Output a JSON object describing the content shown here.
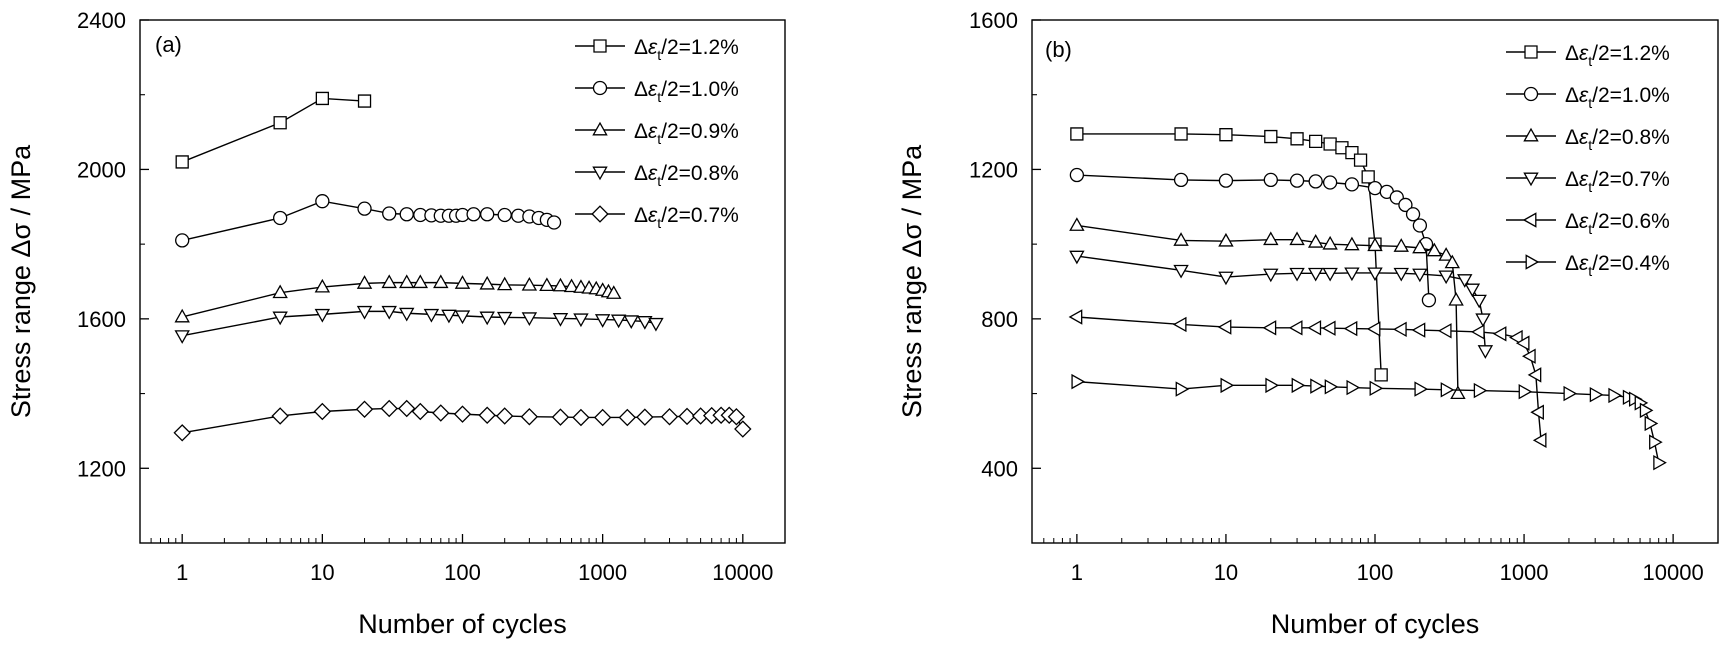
{
  "chart_data": [
    {
      "panel": "(a)",
      "type": "line",
      "xlabel": "Number of cycles",
      "ylabel": "Stress range Δσ / MPa",
      "xscale": "log",
      "xlim": [
        0.5,
        20000
      ],
      "ylim": [
        1000,
        2400
      ],
      "xticks": [
        1,
        10,
        100,
        1000,
        10000
      ],
      "xtick_labels": [
        "1",
        "10",
        "100",
        "1000",
        "10000"
      ],
      "yticks": [
        1200,
        1600,
        2000,
        2400
      ],
      "ytick_labels": [
        "1200",
        "1600",
        "2000",
        "2400"
      ],
      "legend_position": "top-right",
      "series": [
        {
          "name": "Δεt/2=1.2%",
          "marker": "square",
          "x": [
            1,
            5,
            10,
            20
          ],
          "y": [
            2020,
            2125,
            2190,
            2183
          ]
        },
        {
          "name": "Δεt/2=1.0%",
          "marker": "circle",
          "x": [
            1,
            5,
            10,
            20,
            30,
            40,
            50,
            60,
            70,
            80,
            90,
            100,
            120,
            150,
            200,
            250,
            300,
            350,
            400,
            450
          ],
          "y": [
            1810,
            1870,
            1915,
            1895,
            1882,
            1880,
            1878,
            1877,
            1876,
            1876,
            1876,
            1878,
            1880,
            1880,
            1878,
            1876,
            1874,
            1870,
            1865,
            1858
          ]
        },
        {
          "name": "Δεt/2=0.9%",
          "marker": "triangle-up",
          "x": [
            1,
            5,
            10,
            20,
            30,
            40,
            50,
            70,
            100,
            150,
            200,
            300,
            400,
            500,
            600,
            700,
            800,
            900,
            1000,
            1100,
            1200
          ],
          "y": [
            1605,
            1670,
            1685,
            1695,
            1697,
            1697,
            1697,
            1697,
            1695,
            1693,
            1691,
            1690,
            1689,
            1688,
            1686,
            1684,
            1682,
            1680,
            1676,
            1672,
            1668
          ]
        },
        {
          "name": "Δεt/2=0.8%",
          "marker": "triangle-down",
          "x": [
            1,
            5,
            10,
            20,
            30,
            40,
            60,
            80,
            100,
            150,
            200,
            300,
            500,
            700,
            1000,
            1300,
            1600,
            2000,
            2400
          ],
          "y": [
            1555,
            1605,
            1612,
            1620,
            1620,
            1615,
            1612,
            1610,
            1608,
            1605,
            1604,
            1603,
            1601,
            1600,
            1598,
            1597,
            1595,
            1593,
            1588
          ]
        },
        {
          "name": "Δεt/2=0.7%",
          "marker": "diamond",
          "x": [
            1,
            5,
            10,
            20,
            30,
            40,
            50,
            70,
            100,
            150,
            200,
            300,
            500,
            700,
            1000,
            1500,
            2000,
            3000,
            4000,
            5000,
            6000,
            7000,
            8000,
            9000,
            10000
          ],
          "y": [
            1295,
            1340,
            1352,
            1358,
            1360,
            1360,
            1352,
            1348,
            1345,
            1342,
            1340,
            1338,
            1337,
            1336,
            1336,
            1336,
            1337,
            1338,
            1339,
            1340,
            1341,
            1342,
            1342,
            1338,
            1305
          ]
        }
      ]
    },
    {
      "panel": "(b)",
      "type": "line",
      "xlabel": "Number of cycles",
      "ylabel": "Stress range Δσ / MPa",
      "xscale": "log",
      "xlim": [
        0.5,
        20000
      ],
      "ylim": [
        200,
        1600
      ],
      "xticks": [
        1,
        10,
        100,
        1000,
        10000
      ],
      "xtick_labels": [
        "1",
        "10",
        "100",
        "1000",
        "10000"
      ],
      "yticks": [
        400,
        800,
        1200,
        1600
      ],
      "ytick_labels": [
        "400",
        "800",
        "1200",
        "1600"
      ],
      "legend_position": "top-right",
      "series": [
        {
          "name": "Δεt/2=1.2%",
          "marker": "square",
          "x": [
            1,
            5,
            10,
            20,
            30,
            40,
            50,
            60,
            70,
            80,
            90,
            100,
            110
          ],
          "y": [
            1295,
            1295,
            1293,
            1288,
            1282,
            1275,
            1268,
            1258,
            1245,
            1225,
            1180,
            1000,
            650
          ]
        },
        {
          "name": "Δεt/2=1.0%",
          "marker": "circle",
          "x": [
            1,
            5,
            10,
            20,
            30,
            40,
            50,
            70,
            100,
            120,
            140,
            160,
            180,
            200,
            220,
            230
          ],
          "y": [
            1185,
            1172,
            1170,
            1172,
            1170,
            1168,
            1165,
            1160,
            1150,
            1140,
            1125,
            1105,
            1080,
            1050,
            1000,
            850
          ]
        },
        {
          "name": "Δεt/2=0.8%",
          "marker": "triangle-up",
          "x": [
            1,
            5,
            10,
            20,
            30,
            40,
            50,
            70,
            100,
            150,
            200,
            250,
            300,
            330,
            350,
            360
          ],
          "y": [
            1050,
            1010,
            1008,
            1012,
            1012,
            1005,
            1000,
            998,
            996,
            994,
            990,
            982,
            970,
            950,
            850,
            600
          ]
        },
        {
          "name": "Δεt/2=0.7%",
          "marker": "triangle-down",
          "x": [
            1,
            5,
            10,
            20,
            30,
            40,
            50,
            70,
            100,
            150,
            200,
            300,
            400,
            450,
            500,
            530,
            550
          ],
          "y": [
            968,
            930,
            912,
            920,
            922,
            922,
            922,
            923,
            923,
            922,
            920,
            915,
            905,
            880,
            850,
            800,
            715
          ]
        },
        {
          "name": "Δεt/2=0.6%",
          "marker": "triangle-left",
          "x": [
            1,
            5,
            10,
            20,
            30,
            40,
            50,
            70,
            100,
            150,
            200,
            300,
            500,
            700,
            900,
            1000,
            1100,
            1200,
            1250,
            1300
          ],
          "y": [
            805,
            785,
            778,
            776,
            776,
            776,
            775,
            774,
            773,
            772,
            770,
            768,
            765,
            760,
            750,
            735,
            700,
            650,
            550,
            475
          ]
        },
        {
          "name": "Δεt/2=0.4%",
          "marker": "triangle-right",
          "x": [
            1,
            5,
            10,
            20,
            30,
            40,
            50,
            70,
            100,
            200,
            300,
            500,
            1000,
            2000,
            3000,
            4000,
            5000,
            5500,
            6000,
            6500,
            7000,
            7500,
            8000
          ],
          "y": [
            632,
            612,
            622,
            622,
            622,
            620,
            618,
            616,
            614,
            612,
            610,
            608,
            605,
            600,
            597,
            595,
            590,
            585,
            575,
            555,
            520,
            470,
            415
          ]
        }
      ]
    }
  ]
}
